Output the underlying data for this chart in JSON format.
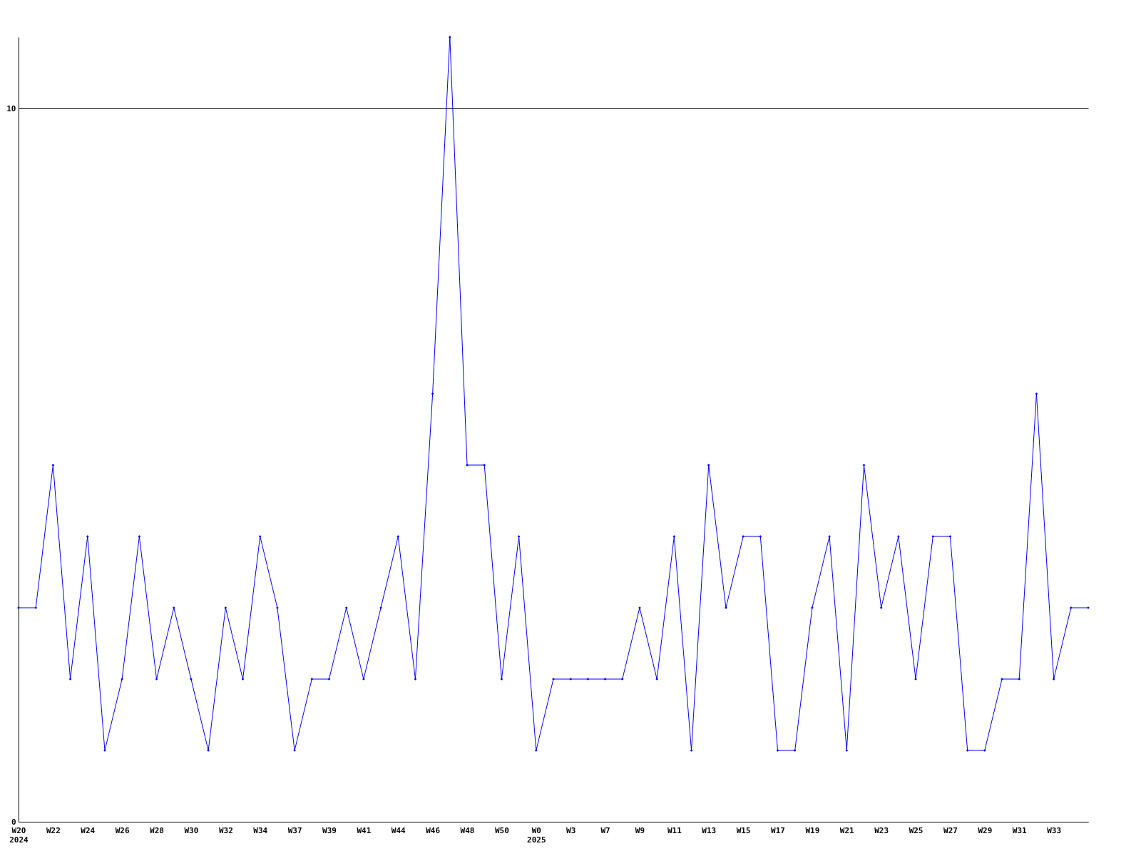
{
  "chart_data": {
    "type": "line",
    "categories": [
      "W20\n2024",
      null,
      "W22",
      null,
      "W24",
      null,
      "W26",
      null,
      "W28",
      null,
      "W30",
      null,
      "W32",
      null,
      "W34",
      null,
      "W37",
      null,
      "W39",
      null,
      "W41",
      null,
      "W44",
      null,
      "W46",
      null,
      "W48",
      null,
      "W50",
      null,
      "W0\n2025",
      null,
      "W3",
      null,
      "W7",
      null,
      "W9",
      null,
      "W11",
      null,
      "W13",
      null,
      "W15",
      null,
      "W17",
      null,
      "W19",
      null,
      "W21",
      null,
      "W23",
      null,
      "W25",
      null,
      "W27",
      null,
      "W29",
      null,
      "W31",
      null,
      "W33",
      null,
      null
    ],
    "series": [
      {
        "color": "#0000ff",
        "values": [
          3,
          3,
          5,
          2,
          4,
          1,
          2,
          4,
          2,
          3,
          2,
          1,
          3,
          2,
          4,
          3,
          1,
          2,
          2,
          3,
          2,
          3,
          4,
          2,
          6,
          11,
          5,
          5,
          2,
          4,
          1,
          2,
          2,
          2,
          2,
          2,
          3,
          2,
          4,
          1,
          5,
          3,
          4,
          4,
          1,
          1,
          3,
          4,
          1,
          5,
          3,
          4,
          2,
          4,
          4,
          1,
          1,
          2,
          2,
          6,
          2,
          3,
          3
        ]
      }
    ],
    "ylim": [
      0,
      11
    ],
    "yticks": [
      0,
      10
    ],
    "grid": "y",
    "marker": "diamond",
    "line_style": "solid"
  }
}
